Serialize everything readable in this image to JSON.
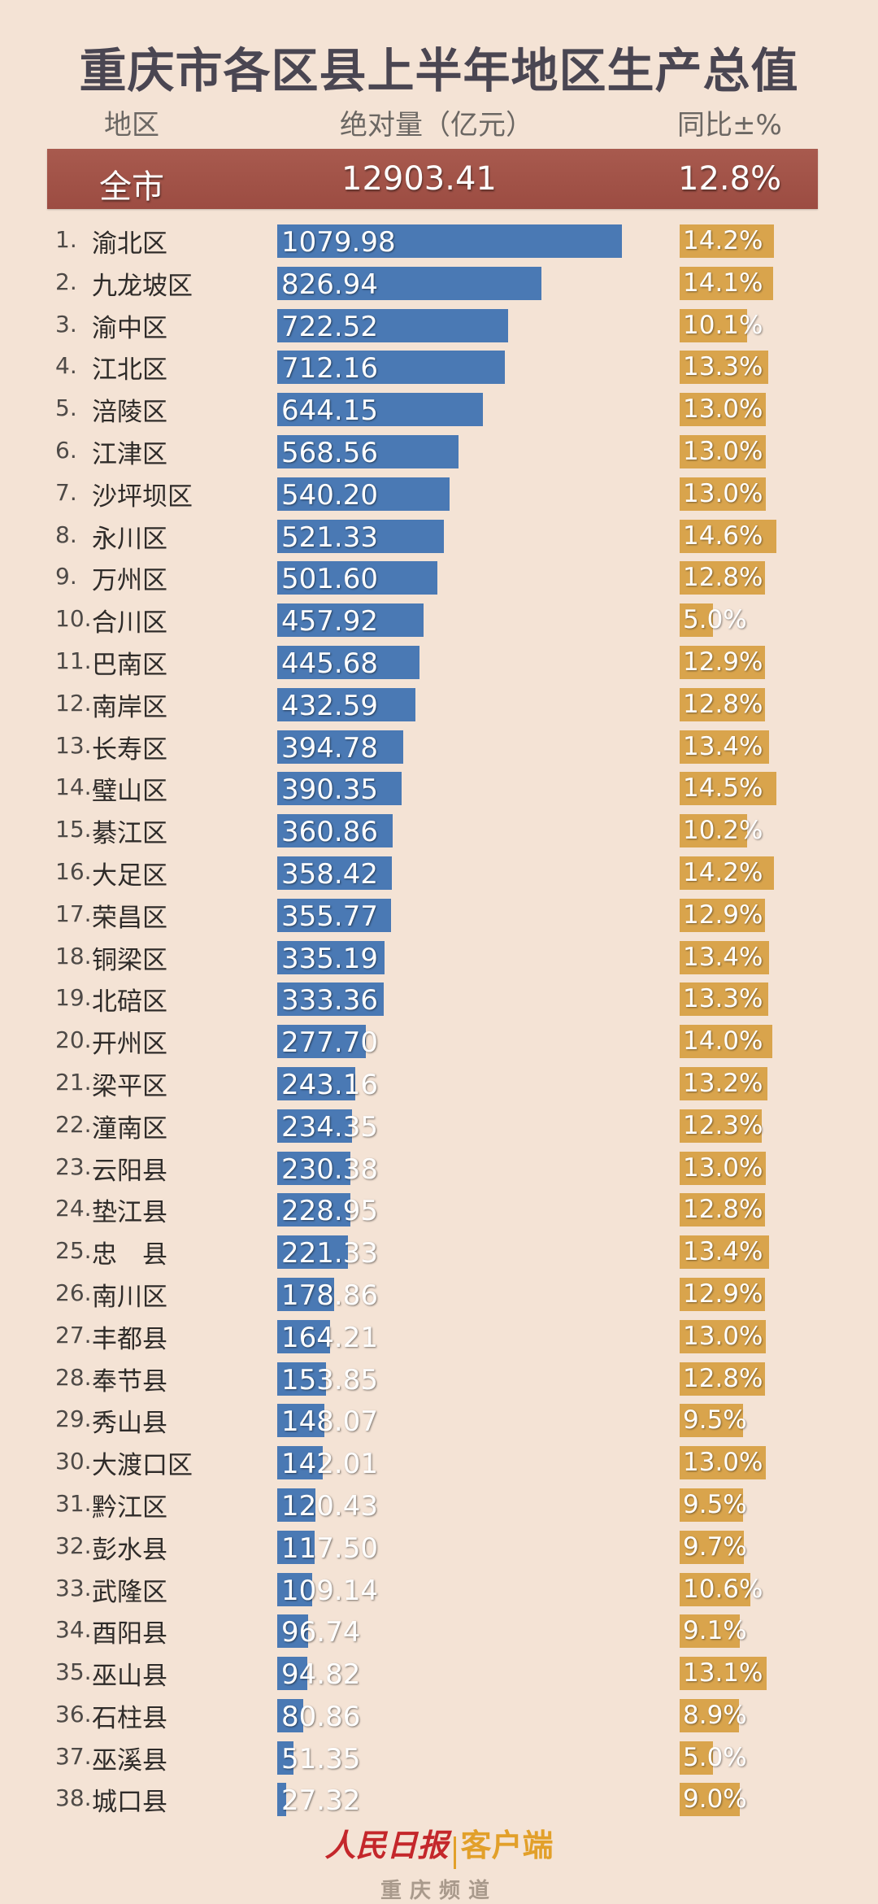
{
  "header": {
    "title": "重庆市各区县上半年地区生产总值",
    "col_region": "地区",
    "col_value": "绝对量（亿元）",
    "col_growth": "同比±%"
  },
  "total": {
    "label": "全市",
    "value": "12903.41",
    "growth": "12.8%"
  },
  "colors": {
    "background": "#f4e3d5",
    "total_row": "#a35247",
    "value_bar": "#4a79b4",
    "growth_bar": "#d9a44c",
    "title": "#4a4652"
  },
  "footer": {
    "brand": "人民日报",
    "brand_suffix": "客户端",
    "channel": "重庆频道"
  },
  "chart_data": {
    "type": "bar",
    "title": "重庆市各区县上半年地区生产总值",
    "xlabel": "地区",
    "ylabel": "绝对量（亿元） / 同比±%",
    "orientation": "horizontal",
    "total": {
      "region": "全市",
      "value": 12903.41,
      "growth": 12.8
    },
    "categories": [
      "渝北区",
      "九龙坡区",
      "渝中区",
      "江北区",
      "涪陵区",
      "江津区",
      "沙坪坝区",
      "永川区",
      "万州区",
      "合川区",
      "巴南区",
      "南岸区",
      "长寿区",
      "璧山区",
      "綦江区",
      "大足区",
      "荣昌区",
      "铜梁区",
      "北碚区",
      "开州区",
      "梁平区",
      "潼南区",
      "云阳县",
      "垫江县",
      "忠　县",
      "南川区",
      "丰都县",
      "奉节县",
      "秀山县",
      "大渡口区",
      "黔江区",
      "彭水县",
      "武隆区",
      "酉阳县",
      "巫山县",
      "石柱县",
      "巫溪县",
      "城口县"
    ],
    "series": [
      {
        "name": "绝对量（亿元）",
        "values": [
          1079.98,
          826.94,
          722.52,
          712.16,
          644.15,
          568.56,
          540.2,
          521.33,
          501.6,
          457.92,
          445.68,
          432.59,
          394.78,
          390.35,
          360.86,
          358.42,
          355.77,
          335.19,
          333.36,
          277.7,
          243.16,
          234.35,
          230.38,
          228.95,
          221.33,
          178.86,
          164.21,
          153.85,
          148.07,
          142.01,
          120.43,
          117.5,
          109.14,
          96.74,
          94.82,
          80.86,
          51.35,
          27.32
        ]
      },
      {
        "name": "同比±%",
        "values": [
          14.2,
          14.1,
          10.1,
          13.3,
          13.0,
          13.0,
          13.0,
          14.6,
          12.8,
          5.0,
          12.9,
          12.8,
          13.4,
          14.5,
          10.2,
          14.2,
          12.9,
          13.4,
          13.3,
          14.0,
          13.2,
          12.3,
          13.0,
          12.8,
          13.4,
          12.9,
          13.0,
          12.8,
          9.5,
          13.0,
          9.5,
          9.7,
          10.6,
          9.1,
          13.1,
          8.9,
          5.0,
          9.0
        ]
      }
    ],
    "labels": {
      "values": [
        "1079.98",
        "826.94",
        "722.52",
        "712.16",
        "644.15",
        "568.56",
        "540.20",
        "521.33",
        "501.60",
        "457.92",
        "445.68",
        "432.59",
        "394.78",
        "390.35",
        "360.86",
        "358.42",
        "355.77",
        "335.19",
        "333.36",
        "277.70",
        "243.16",
        "234.35",
        "230.38",
        "228.95",
        "221.33",
        "178.86",
        "164.21",
        "153.85",
        "148.07",
        "142.01",
        "120.43",
        "117.50",
        "109.14",
        "96.74",
        "94.82",
        "80.86",
        "51.35",
        "27.32"
      ],
      "growth": [
        "14.2%",
        "14.1%",
        "10.1%",
        "13.3%",
        "13.0%",
        "13.0%",
        "13.0%",
        "14.6%",
        "12.8%",
        "5.0%",
        "12.9%",
        "12.8%",
        "13.4%",
        "14.5%",
        "10.2%",
        "14.2%",
        "12.9%",
        "13.4%",
        "13.3%",
        "14.0%",
        "13.2%",
        "12.3%",
        "13.0%",
        "12.8%",
        "13.4%",
        "12.9%",
        "13.0%",
        "12.8%",
        "9.5%",
        "13.0%",
        "9.5%",
        "9.7%",
        "10.6%",
        "9.1%",
        "13.1%",
        "8.9%",
        "5.0%",
        "9.0%"
      ]
    },
    "grid": false,
    "legend": "none"
  }
}
